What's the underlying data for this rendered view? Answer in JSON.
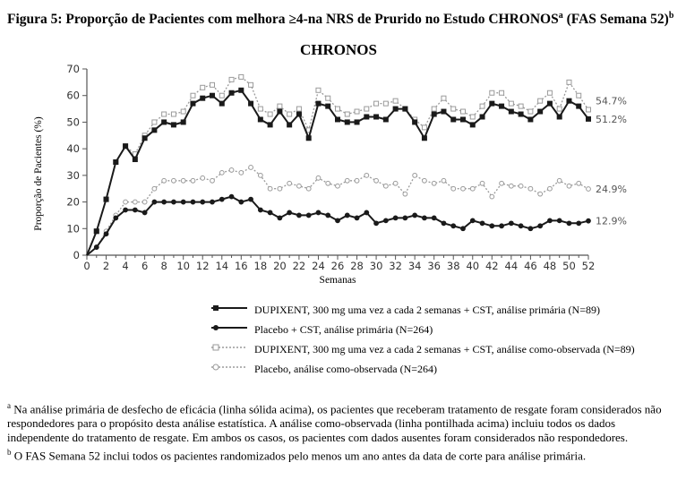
{
  "caption": {
    "prefix": "Figura 5: Proporção de Pacientes com melhora ≥4-na NRS de Prurido no Estudo CHRONOS",
    "sup_a": "a",
    "mid": " (FAS Semana 52)",
    "sup_b": "b"
  },
  "chart_data": {
    "type": "line",
    "title": "CHRONOS",
    "xlabel": "Semanas",
    "ylabel": "Proporção de Pacientes (%)",
    "xlim": [
      0,
      52
    ],
    "ylim": [
      0,
      70
    ],
    "xticks": [
      0,
      2,
      4,
      6,
      8,
      10,
      12,
      14,
      16,
      18,
      20,
      22,
      24,
      26,
      28,
      30,
      32,
      34,
      36,
      38,
      40,
      42,
      44,
      46,
      48,
      50,
      52
    ],
    "yticks": [
      0,
      10,
      20,
      30,
      40,
      50,
      60,
      70
    ],
    "grid": false,
    "legend_position": "bottom",
    "x": [
      0,
      1,
      2,
      3,
      4,
      5,
      6,
      7,
      8,
      9,
      10,
      11,
      12,
      13,
      14,
      15,
      16,
      17,
      18,
      19,
      20,
      21,
      22,
      23,
      24,
      25,
      26,
      27,
      28,
      29,
      30,
      31,
      32,
      33,
      34,
      35,
      36,
      37,
      38,
      39,
      40,
      41,
      42,
      43,
      44,
      45,
      46,
      47,
      48,
      49,
      50,
      51,
      52
    ],
    "series": [
      {
        "name": "DUPIXENT, 300 mg uma vez a cada 2 semanas + CST, análise primária (N=89)",
        "style": "solid-filled-square",
        "end_label": "51.2%",
        "values": [
          0,
          9,
          21,
          35,
          41,
          36,
          44,
          47,
          50,
          49,
          50,
          57,
          59,
          60,
          57,
          61,
          62,
          57,
          51,
          49,
          54,
          49,
          53,
          44,
          57,
          56,
          51,
          50,
          50,
          52,
          52,
          51,
          55,
          55,
          50,
          44,
          53,
          54,
          51,
          51,
          49,
          52,
          57,
          56,
          54,
          53,
          51,
          54,
          57,
          52,
          58,
          56,
          51.2
        ]
      },
      {
        "name": "Placebo + CST, análise primária (N=264)",
        "style": "solid-filled-dot",
        "end_label": "12.9%",
        "values": [
          0,
          3,
          8,
          14,
          17,
          17,
          16,
          20,
          20,
          20,
          20,
          20,
          20,
          20,
          21,
          22,
          20,
          21,
          17,
          16,
          14,
          16,
          15,
          15,
          16,
          15,
          13,
          15,
          14,
          16,
          12,
          13,
          14,
          14,
          15,
          14,
          14,
          12,
          11,
          10,
          13,
          12,
          11,
          11,
          12,
          11,
          10,
          11,
          13,
          13,
          12,
          12,
          12.9
        ]
      },
      {
        "name": "DUPIXENT, 300 mg uma vez a cada 2 semanas + CST, análise como-observada (N=89)",
        "style": "dotted-open-square",
        "end_label": "54.7%",
        "values": [
          0,
          9,
          21,
          35,
          41,
          38,
          45,
          50,
          53,
          53,
          54,
          60,
          63,
          64,
          60,
          66,
          67,
          64,
          55,
          53,
          56,
          53,
          55,
          47,
          62,
          59,
          55,
          53,
          54,
          55,
          57,
          57,
          58,
          55,
          51,
          48,
          55,
          59,
          55,
          54,
          52,
          56,
          61,
          61,
          57,
          56,
          54,
          58,
          61,
          55,
          65,
          60,
          54.7
        ]
      },
      {
        "name": "Placebo, análise como-observada (N=264)",
        "style": "dotted-open-dot",
        "end_label": "24.9%",
        "values": [
          0,
          3,
          9,
          15,
          20,
          20,
          20,
          25,
          28,
          28,
          28,
          28,
          29,
          28,
          31,
          32,
          31,
          33,
          30,
          25,
          25,
          27,
          26,
          25,
          29,
          27,
          26,
          28,
          28,
          30,
          28,
          26,
          27,
          23,
          30,
          28,
          27,
          28,
          25,
          25,
          25,
          27,
          22,
          27,
          26,
          26,
          25,
          23,
          25,
          28,
          26,
          27,
          24.9
        ]
      }
    ]
  },
  "footnotes": {
    "a_mark": "a",
    "a_text": " Na análise primária de desfecho de eficácia (linha sólida acima), os pacientes que receberam tratamento de resgate foram considerados não respondedores para o propósito desta análise estatística. A análise como-observada (linha pontilhada acima) incluiu todos os dados independente do tratamento de resgate. Em ambos os casos, os pacientes com dados ausentes foram considerados não respondedores.",
    "b_mark": "b",
    "b_text": " O FAS Semana 52 inclui todos os pacientes randomizados pelo menos um ano antes da data de corte para análise primária."
  },
  "colors": {
    "solid": "#1a1a1a",
    "dotted": "#9a9a9a",
    "axis": "#555555"
  }
}
